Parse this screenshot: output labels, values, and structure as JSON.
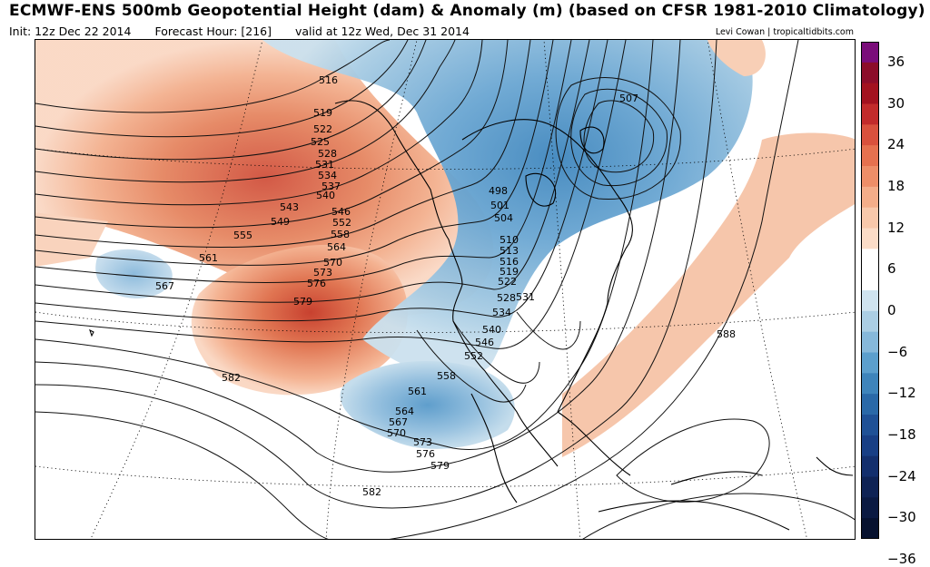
{
  "header": {
    "title": "ECMWF-ENS 500mb Geopotential Height (dam) & Anomaly (m) (based on CFSR 1981-2010 Climatology)",
    "init": "Init: 12z Dec 22 2014",
    "forecast_hour": "Forecast Hour: [216]",
    "valid": "valid at 12z Wed, Dec 31 2014",
    "credit": "Levi Cowan | tropicaltidbits.com"
  },
  "colorbar": {
    "labels": [
      "36",
      "30",
      "24",
      "18",
      "12",
      "6",
      "0",
      "−6",
      "−12",
      "−18",
      "−24",
      "−30",
      "−36"
    ],
    "colors": [
      "#7a0d7a",
      "#8c0d2a",
      "#a3121f",
      "#c22b2b",
      "#d9513d",
      "#e6714f",
      "#ee8e68",
      "#f4ad89",
      "#f8c8ab",
      "#fbdcc7",
      "#ffffff",
      "#ffffff",
      "#cfe3ef",
      "#abcee4",
      "#86b8da",
      "#5c9fcd",
      "#3e84bb",
      "#2a69a8",
      "#1f5196",
      "#183f85",
      "#132f6d",
      "#0f2355",
      "#0b1a42",
      "#07122f"
    ]
  },
  "contour_labels": [
    "516",
    "519",
    "522",
    "525",
    "528",
    "531",
    "534",
    "537",
    "540",
    "543",
    "546",
    "549",
    "552",
    "555",
    "558",
    "561",
    "564",
    "567",
    "570",
    "573",
    "576",
    "579",
    "582",
    "507",
    "498",
    "501",
    "504",
    "510",
    "513",
    "516",
    "519",
    "522",
    "528",
    "531",
    "534",
    "540",
    "546",
    "552",
    "558",
    "561",
    "564",
    "567",
    "570",
    "573",
    "576",
    "579",
    "582",
    "588"
  ]
}
